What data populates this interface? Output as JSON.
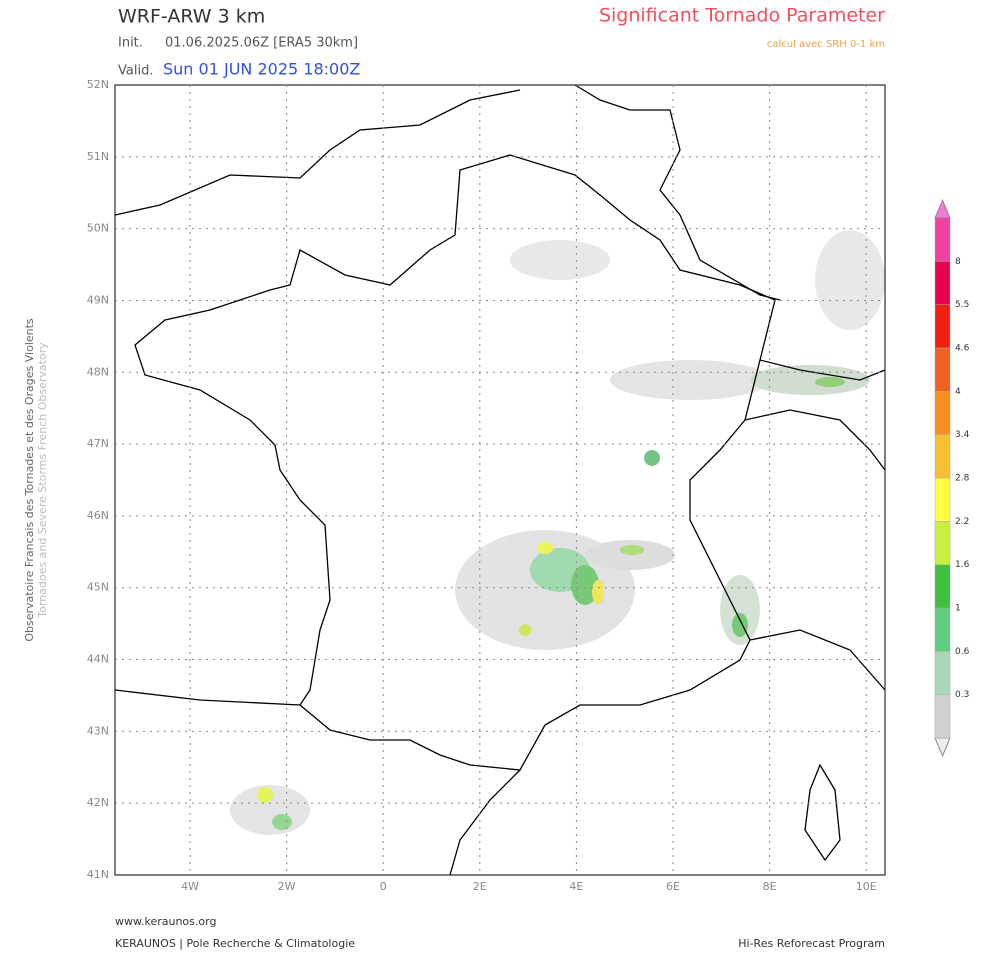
{
  "header": {
    "model": "WRF-ARW 3 km",
    "init_label": "Init.",
    "init": "01.06.2025.06Z [ERA5 30km]",
    "valid_label": "Valid.",
    "valid": "Sun 01 JUN 2025 18:00Z",
    "title": "Significant Tornado Parameter",
    "subtitle": "calcul avec SRH 0-1 km"
  },
  "side": {
    "line1": "Observatoire Francais des Tornades et des Orages Violents",
    "line2": "Tornadoes and Severe Storms French Observatory"
  },
  "map": {
    "lat_labels": [
      "52N",
      "51N",
      "50N",
      "49N",
      "48N",
      "47N",
      "46N",
      "45N",
      "44N",
      "43N",
      "42N",
      "41N"
    ],
    "lon_labels": [
      "4W",
      "2W",
      "0",
      "2E",
      "4E",
      "6E",
      "8E",
      "10E"
    ]
  },
  "colorbar": {
    "labels": [
      "0.3",
      "0.6",
      "1",
      "1.6",
      "2.2",
      "2.8",
      "3.4",
      "4",
      "4.6",
      "5.5",
      "8"
    ],
    "colors": [
      "#eeeeee",
      "#d0d0d0",
      "#a8d8b8",
      "#60cc80",
      "#40c040",
      "#c8f040",
      "#ffff40",
      "#f8c030",
      "#f89020",
      "#f06020",
      "#f02010",
      "#e8004a",
      "#f040a0",
      "#f878d8"
    ]
  },
  "footer": {
    "url": "www.keraunos.org",
    "org": "KERAUNOS | Pole Recherche & Climatologie",
    "program": "Hi-Res Reforecast Program"
  }
}
